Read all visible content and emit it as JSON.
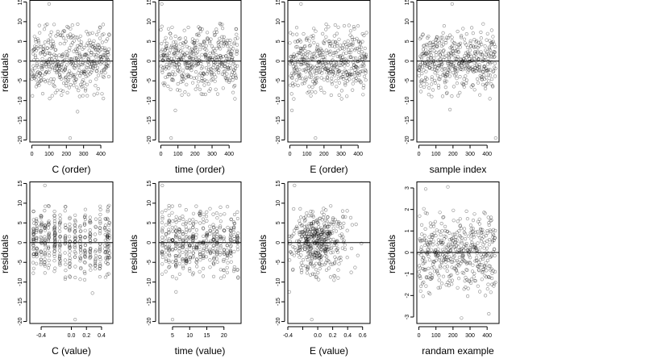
{
  "chart_data": [
    {
      "type": "scatter",
      "xlabel": "C (order)",
      "ylabel": "residuals",
      "x_ticks": [
        0,
        100,
        200,
        300,
        400
      ],
      "y_ticks": [
        -20,
        -15,
        -10,
        -5,
        0,
        5,
        10,
        15
      ],
      "xlim": [
        -12,
        470
      ],
      "ylim": [
        -20.5,
        15.5
      ],
      "hline": 0,
      "grid": false,
      "series": [
        {
          "x_gen": {
            "kind": "index",
            "n": 450
          },
          "y_gen": {
            "kind": "noise",
            "sd": 4,
            "seed": 11
          },
          "highlights": [
            {
              "x": 100,
              "y": 14.5
            },
            {
              "x": 222,
              "y": -19.5
            },
            {
              "x": 265,
              "y": -12.8
            }
          ]
        }
      ]
    },
    {
      "type": "scatter",
      "xlabel": "time (order)",
      "ylabel": "residuals",
      "x_ticks": [
        0,
        100,
        200,
        300,
        400
      ],
      "y_ticks": [
        -20,
        -15,
        -10,
        -5,
        0,
        5,
        10,
        15
      ],
      "xlim": [
        -12,
        470
      ],
      "ylim": [
        -20.5,
        15.5
      ],
      "hline": 0,
      "grid": false,
      "series": [
        {
          "x_gen": {
            "kind": "index",
            "n": 450
          },
          "y_gen": {
            "kind": "noise",
            "sd": 4,
            "seed": 23
          },
          "highlights": [
            {
              "x": 5,
              "y": 14.5
            },
            {
              "x": 60,
              "y": -19.5
            },
            {
              "x": 85,
              "y": -12.5
            }
          ]
        }
      ]
    },
    {
      "type": "scatter",
      "xlabel": "E (order)",
      "ylabel": "residuals",
      "x_ticks": [
        0,
        100,
        200,
        300,
        400
      ],
      "y_ticks": [
        -20,
        -15,
        -10,
        -5,
        0,
        5,
        10,
        15
      ],
      "xlim": [
        -12,
        470
      ],
      "ylim": [
        -20.5,
        15.5
      ],
      "hline": 0,
      "grid": false,
      "series": [
        {
          "x_gen": {
            "kind": "index",
            "n": 450
          },
          "y_gen": {
            "kind": "noise",
            "sd": 4,
            "seed": 37
          },
          "highlights": [
            {
              "x": 65,
              "y": 14.5
            },
            {
              "x": 12,
              "y": -12.5
            },
            {
              "x": 150,
              "y": -19.5
            }
          ]
        }
      ]
    },
    {
      "type": "scatter",
      "xlabel": "sample index",
      "ylabel": "residuals",
      "x_ticks": [
        0,
        100,
        200,
        300,
        400
      ],
      "y_ticks": [
        -20,
        -15,
        -10,
        -5,
        0,
        5,
        10,
        15
      ],
      "xlim": [
        -12,
        470
      ],
      "ylim": [
        -20.5,
        15.5
      ],
      "hline": 0,
      "grid": false,
      "series": [
        {
          "x_gen": {
            "kind": "index",
            "n": 450
          },
          "y_gen": {
            "kind": "noise",
            "sd": 4,
            "seed": 41
          },
          "highlights": [
            {
              "x": 195,
              "y": 14.5
            },
            {
              "x": 450,
              "y": -19.5
            },
            {
              "x": 182,
              "y": -12.3
            }
          ]
        }
      ]
    },
    {
      "type": "scatter",
      "xlabel": "C (value)",
      "ylabel": "residuals",
      "x_ticks": [
        -0.4,
        0.0,
        0.2,
        0.4
      ],
      "x_tick_labels": [
        "-0.4",
        "0.0",
        "0.2",
        "0.4"
      ],
      "y_ticks": [
        -20,
        -15,
        -10,
        -5,
        0,
        5,
        10,
        15
      ],
      "xlim": [
        -0.55,
        0.55
      ],
      "ylim": [
        -20.5,
        15.5
      ],
      "hline": 0,
      "grid": false,
      "series": [
        {
          "x_gen": {
            "kind": "columns",
            "values": [
              -0.5,
              -0.46,
              -0.4,
              -0.35,
              -0.3,
              -0.22,
              -0.15,
              -0.08,
              -0.02,
              0.05,
              0.12,
              0.18,
              0.25,
              0.32,
              0.38,
              0.45,
              0.48,
              0.5
            ],
            "n": 450
          },
          "y_gen": {
            "kind": "noise",
            "sd": 4,
            "seed": 53
          },
          "highlights": [
            {
              "x": -0.35,
              "y": 14.5
            },
            {
              "x": 0.05,
              "y": -19.5
            },
            {
              "x": 0.28,
              "y": -12.8
            }
          ]
        }
      ]
    },
    {
      "type": "scatter",
      "xlabel": "time (value)",
      "ylabel": "residuals",
      "x_ticks": [
        5,
        10,
        15,
        20
      ],
      "y_ticks": [
        -20,
        -15,
        -10,
        -5,
        0,
        5,
        10,
        15
      ],
      "xlim": [
        1,
        25
      ],
      "ylim": [
        -20.5,
        15.5
      ],
      "hline": 0,
      "grid": false,
      "series": [
        {
          "x_gen": {
            "kind": "columns",
            "values": [
              2,
              3,
              4,
              5,
              6,
              7,
              8,
              9,
              10,
              11,
              12,
              13,
              14,
              15,
              16,
              17,
              18,
              19,
              20,
              21,
              22,
              23,
              24
            ],
            "n": 450
          },
          "y_gen": {
            "kind": "noise",
            "sd": 4,
            "seed": 67
          },
          "highlights": [
            {
              "x": 2,
              "y": 14.5
            },
            {
              "x": 5,
              "y": -19.5
            },
            {
              "x": 6,
              "y": -12.5
            }
          ]
        }
      ]
    },
    {
      "type": "scatter",
      "xlabel": "E (value)",
      "ylabel": "residuals",
      "x_ticks": [
        -0.4,
        -0.2,
        0.0,
        0.2,
        0.4,
        0.6
      ],
      "x_tick_labels": [
        "-0.4",
        "",
        "0.0",
        "0.2",
        "0.4",
        "0.6"
      ],
      "y_ticks": [
        -20,
        -15,
        -10,
        -5,
        0,
        5,
        10,
        15
      ],
      "xlim": [
        -0.4,
        0.7
      ],
      "ylim": [
        -20.5,
        15.5
      ],
      "hline": 0,
      "grid": false,
      "series": [
        {
          "x_gen": {
            "kind": "normal",
            "mean": 0.0,
            "sd": 0.2,
            "min": -0.4,
            "max": 0.6,
            "n": 450,
            "seed": 71
          },
          "y_gen": {
            "kind": "noise",
            "sd": 4,
            "seed": 79
          },
          "highlights": [
            {
              "x": -0.31,
              "y": 14.5
            },
            {
              "x": -0.08,
              "y": -19.5
            },
            {
              "x": -0.38,
              "y": -12.5
            }
          ]
        }
      ]
    },
    {
      "type": "scatter",
      "xlabel": "randam example",
      "ylabel": "residuals",
      "x_ticks": [
        0,
        100,
        200,
        300,
        400
      ],
      "y_ticks": [
        -3,
        -2,
        -1,
        0,
        1,
        2,
        3
      ],
      "xlim": [
        -12,
        470
      ],
      "ylim": [
        -3.3,
        3.3
      ],
      "hline": 0,
      "grid": false,
      "series": [
        {
          "x_gen": {
            "kind": "index",
            "n": 450
          },
          "y_gen": {
            "kind": "noise",
            "sd": 1,
            "seed": 83
          },
          "highlights": [
            {
              "x": 40,
              "y": 2.95
            },
            {
              "x": 170,
              "y": 3.05
            },
            {
              "x": 250,
              "y": -3.05
            },
            {
              "x": 410,
              "y": -2.85
            }
          ]
        }
      ]
    }
  ]
}
